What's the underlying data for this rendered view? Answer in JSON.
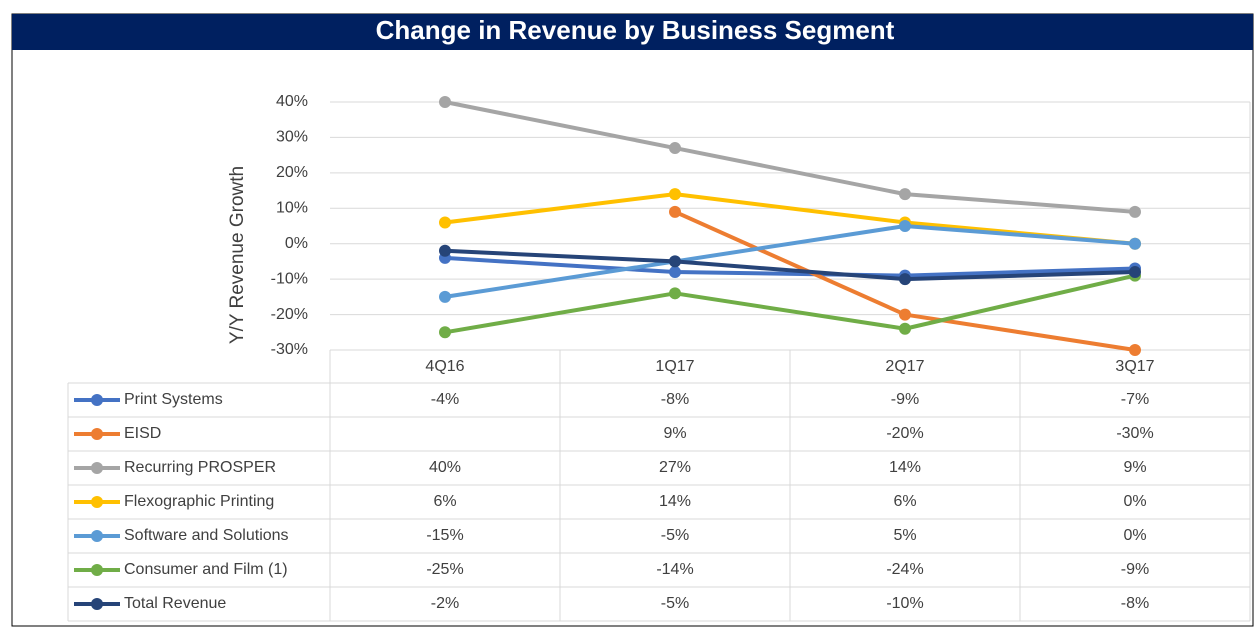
{
  "chart_data": {
    "type": "line",
    "title": "Change in Revenue by Business Segment",
    "y_label": "Y/Y Revenue Growth",
    "categories": [
      "4Q16",
      "1Q17",
      "2Q17",
      "3Q17"
    ],
    "ylim": [
      -30,
      40
    ],
    "yticks": [
      {
        "value": -30,
        "label": "-30%"
      },
      {
        "value": -20,
        "label": "-20%"
      },
      {
        "value": -10,
        "label": "-10%"
      },
      {
        "value": 0,
        "label": "0%"
      },
      {
        "value": 10,
        "label": "10%"
      },
      {
        "value": 20,
        "label": "20%"
      },
      {
        "value": 30,
        "label": "30%"
      },
      {
        "value": 40,
        "label": "40%"
      }
    ],
    "grid": true,
    "series": [
      {
        "name": "Print Systems",
        "color": "#4472c4",
        "values": [
          -4,
          -8,
          -9,
          -7
        ],
        "value_labels": [
          "-4%",
          "-8%",
          "-9%",
          "-7%"
        ]
      },
      {
        "name": "EISD",
        "color": "#ed7d31",
        "values": [
          null,
          9,
          -20,
          -30
        ],
        "value_labels": [
          null,
          "9%",
          "-20%",
          "-30%"
        ]
      },
      {
        "name": "Recurring PROSPER",
        "color": "#a5a5a5",
        "values": [
          40,
          27,
          14,
          9
        ],
        "value_labels": [
          "40%",
          "27%",
          "14%",
          "9%"
        ]
      },
      {
        "name": "Flexographic Printing",
        "color": "#ffc000",
        "values": [
          6,
          14,
          6,
          0
        ],
        "value_labels": [
          "6%",
          "14%",
          "6%",
          "0%"
        ]
      },
      {
        "name": "Software and Solutions",
        "color": "#5b9bd5",
        "values": [
          -15,
          -5,
          5,
          0
        ],
        "value_labels": [
          "-15%",
          "-5%",
          "5%",
          "0%"
        ]
      },
      {
        "name": "Consumer and Film (1)",
        "color": "#70ad47",
        "values": [
          -25,
          -14,
          -24,
          -9
        ],
        "value_labels": [
          "-25%",
          "-14%",
          "-24%",
          "-9%"
        ]
      },
      {
        "name": "Total Revenue",
        "color": "#264478",
        "values": [
          -2,
          -5,
          -10,
          -8
        ],
        "value_labels": [
          "-2%",
          "-5%",
          "-10%",
          "-8%"
        ]
      }
    ]
  }
}
